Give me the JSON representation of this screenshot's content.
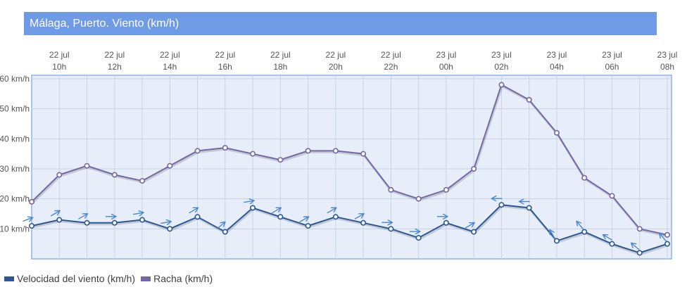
{
  "title": "Málaga, Puerto. Viento (km/h)",
  "colors": {
    "speed": "#2b5797",
    "gust": "#7667a6",
    "arrow": "#4a86d0",
    "title_bg": "#6f9ae6",
    "plot_bg": "#e7eef9",
    "border": "#8eb4ea"
  },
  "chart_data": {
    "type": "line",
    "x": [
      "22 jul 09h",
      "22 jul 10h",
      "22 jul 11h",
      "22 jul 12h",
      "22 jul 13h",
      "22 jul 14h",
      "22 jul 15h",
      "22 jul 16h",
      "22 jul 17h",
      "22 jul 18h",
      "22 jul 19h",
      "22 jul 20h",
      "22 jul 21h",
      "22 jul 22h",
      "22 jul 23h",
      "23 jul 00h",
      "23 jul 01h",
      "23 jul 02h",
      "23 jul 03h",
      "23 jul 04h",
      "23 jul 05h",
      "23 jul 06h",
      "23 jul 07h",
      "23 jul 08h"
    ],
    "x_tick_labels": [
      {
        "date": "22 jul",
        "hour": "10h",
        "index": 1
      },
      {
        "date": "22 jul",
        "hour": "12h",
        "index": 3
      },
      {
        "date": "22 jul",
        "hour": "14h",
        "index": 5
      },
      {
        "date": "22 jul",
        "hour": "16h",
        "index": 7
      },
      {
        "date": "22 jul",
        "hour": "18h",
        "index": 9
      },
      {
        "date": "22 jul",
        "hour": "20h",
        "index": 11
      },
      {
        "date": "22 jul",
        "hour": "22h",
        "index": 13
      },
      {
        "date": "23 jul",
        "hour": "00h",
        "index": 15
      },
      {
        "date": "23 jul",
        "hour": "02h",
        "index": 17
      },
      {
        "date": "23 jul",
        "hour": "04h",
        "index": 19
      },
      {
        "date": "23 jul",
        "hour": "06h",
        "index": 21
      },
      {
        "date": "23 jul",
        "hour": "08h",
        "index": 23
      }
    ],
    "y_ticks": [
      10,
      20,
      30,
      40,
      50,
      60
    ],
    "y_tick_labels": [
      "10 km/h",
      "20 km/h",
      "30 km/h",
      "40 km/h",
      "50 km/h",
      "60 km/h"
    ],
    "ylim": [
      0,
      60
    ],
    "series": [
      {
        "name": "Velocidad del viento (km/h)",
        "key": "speed",
        "values": [
          11,
          13,
          12,
          12,
          13,
          10,
          14,
          9,
          17,
          14,
          11,
          14,
          12,
          10,
          7,
          12,
          9,
          18,
          17,
          6,
          9,
          5,
          2,
          5
        ],
        "direction_deg": [
          70,
          60,
          60,
          90,
          80,
          80,
          60,
          50,
          80,
          60,
          60,
          60,
          60,
          90,
          90,
          90,
          60,
          270,
          270,
          330,
          320,
          300,
          310,
          320
        ]
      },
      {
        "name": "Racha (km/h)",
        "key": "gust",
        "values": [
          19,
          28,
          31,
          28,
          26,
          31,
          36,
          37,
          35,
          33,
          36,
          36,
          35,
          23,
          20,
          23,
          30,
          58,
          53,
          42,
          27,
          21,
          10,
          8
        ]
      }
    ],
    "grid": true,
    "legend_position": "bottom-left"
  }
}
